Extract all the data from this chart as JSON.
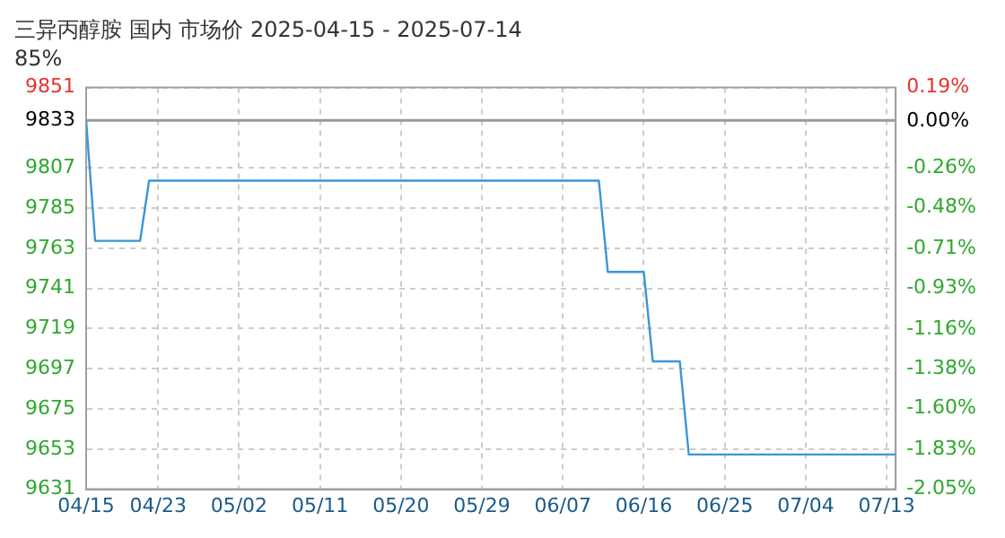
{
  "chart_data": {
    "type": "line",
    "title": "三异丙醇胺 国内 市场价 2025-04-15 - 2025-07-14",
    "subtitle": "85%",
    "x": [
      "2025-04-15",
      "2025-04-16",
      "2025-04-21",
      "2025-04-22",
      "2025-06-11",
      "2025-06-12",
      "2025-06-16",
      "2025-06-17",
      "2025-06-20",
      "2025-06-21",
      "2025-07-14"
    ],
    "series": [
      {
        "color": "#3a96d8",
        "values": [
          9833,
          9767,
          9767,
          9800,
          9800,
          9750,
          9750,
          9701,
          9701,
          9650,
          9650
        ]
      }
    ],
    "xlim": [
      "2025-04-15",
      "2025-07-14"
    ],
    "xticks": [
      {
        "value": "2025-04-15",
        "label": "04/15"
      },
      {
        "value": "2025-04-23",
        "label": "04/23"
      },
      {
        "value": "2025-05-02",
        "label": "05/02"
      },
      {
        "value": "2025-05-11",
        "label": "05/11"
      },
      {
        "value": "2025-05-20",
        "label": "05/20"
      },
      {
        "value": "2025-05-29",
        "label": "05/29"
      },
      {
        "value": "2025-06-07",
        "label": "06/07"
      },
      {
        "value": "2025-06-16",
        "label": "06/16"
      },
      {
        "value": "2025-06-25",
        "label": "06/25"
      },
      {
        "value": "2025-07-04",
        "label": "07/04"
      },
      {
        "value": "2025-07-13",
        "label": "07/13"
      }
    ],
    "ylim": [
      9631,
      9851
    ],
    "yticks": [
      9631,
      9653,
      9675,
      9697,
      9719,
      9741,
      9763,
      9785,
      9807,
      9833,
      9851
    ],
    "y2lim": [
      -2.05,
      0.19
    ],
    "y2ticks": [
      {
        "value": -2.05,
        "label": "-2.05%"
      },
      {
        "value": -1.83,
        "label": "-1.83%"
      },
      {
        "value": -1.6,
        "label": "-1.60%"
      },
      {
        "value": -1.38,
        "label": "-1.38%"
      },
      {
        "value": -1.16,
        "label": "-1.16%"
      },
      {
        "value": -0.93,
        "label": "-0.93%"
      },
      {
        "value": -0.71,
        "label": "-0.71%"
      },
      {
        "value": -0.48,
        "label": "-0.48%"
      },
      {
        "value": -0.26,
        "label": "-0.26%"
      },
      {
        "value": 0,
        "label": "0.00%"
      },
      {
        "value": 0.19,
        "label": "0.19%"
      }
    ],
    "ref_lines": [
      {
        "axis": "y",
        "value": 9833,
        "color": "#999999"
      }
    ],
    "grid": true,
    "legend": false,
    "marker": "none",
    "line_style": "solid"
  }
}
